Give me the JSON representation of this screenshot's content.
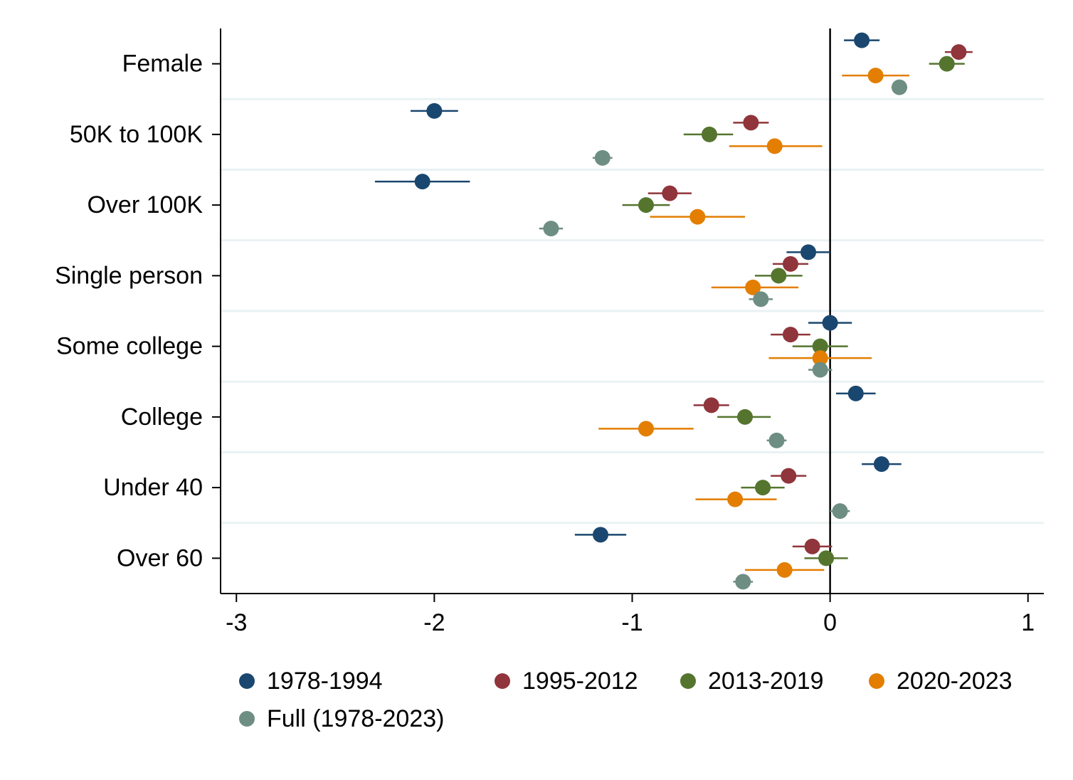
{
  "chart_data": {
    "type": "scatter",
    "orientation": "horizontal",
    "xlim": [
      -3.08,
      1.08
    ],
    "x_ticks": [
      -3,
      -2,
      -1,
      0,
      1
    ],
    "x_tick_labels": [
      "-3",
      "-2",
      "-1",
      "0",
      "1"
    ],
    "reference_line_x": 0,
    "categories": [
      "Female",
      "50K to 100K",
      "Over 100K",
      "Single person",
      "Some college",
      "College",
      "Under 40",
      "Over 60"
    ],
    "grid": "horizontal separators between categories",
    "legend_position": "bottom",
    "series": [
      {
        "name": "1978-1994",
        "color": "#1a476f",
        "values": [
          0.16,
          -2.0,
          -2.06,
          -0.11,
          0.0,
          0.13,
          0.26,
          -1.16
        ],
        "ci_low": [
          0.07,
          -2.12,
          -2.3,
          -0.22,
          -0.11,
          0.03,
          0.16,
          -1.29
        ],
        "ci_high": [
          0.25,
          -1.88,
          -1.82,
          0.0,
          0.11,
          0.23,
          0.36,
          -1.03
        ]
      },
      {
        "name": "1995-2012",
        "color": "#90353b",
        "values": [
          0.65,
          -0.4,
          -0.81,
          -0.2,
          -0.2,
          -0.6,
          -0.21,
          -0.09
        ],
        "ci_low": [
          0.58,
          -0.49,
          -0.92,
          -0.29,
          -0.3,
          -0.69,
          -0.3,
          -0.19
        ],
        "ci_high": [
          0.72,
          -0.31,
          -0.7,
          -0.11,
          -0.1,
          -0.51,
          -0.12,
          0.01
        ]
      },
      {
        "name": "2013-2019",
        "color": "#55752f",
        "values": [
          0.59,
          -0.61,
          -0.93,
          -0.26,
          -0.05,
          -0.43,
          -0.34,
          -0.02
        ],
        "ci_low": [
          0.5,
          -0.74,
          -1.05,
          -0.38,
          -0.19,
          -0.57,
          -0.45,
          -0.13
        ],
        "ci_high": [
          0.68,
          -0.49,
          -0.81,
          -0.14,
          0.09,
          -0.3,
          -0.23,
          0.09
        ]
      },
      {
        "name": "2020-2023",
        "color": "#e37e00",
        "values": [
          0.23,
          -0.28,
          -0.67,
          -0.39,
          -0.05,
          -0.93,
          -0.48,
          -0.23
        ],
        "ci_low": [
          0.06,
          -0.51,
          -0.91,
          -0.6,
          -0.31,
          -1.17,
          -0.68,
          -0.43
        ],
        "ci_high": [
          0.4,
          -0.04,
          -0.43,
          -0.16,
          0.21,
          -0.69,
          -0.27,
          -0.03
        ]
      },
      {
        "name": "Full (1978-2023)",
        "color": "#6e8e84",
        "values": [
          0.35,
          -1.15,
          -1.41,
          -0.35,
          -0.05,
          -0.27,
          0.05,
          -0.44
        ],
        "ci_low": [
          0.31,
          -1.2,
          -1.47,
          -0.41,
          -0.11,
          -0.32,
          0.0,
          -0.49
        ],
        "ci_high": [
          0.39,
          -1.1,
          -1.35,
          -0.29,
          0.01,
          -0.22,
          0.1,
          -0.39
        ]
      }
    ]
  }
}
